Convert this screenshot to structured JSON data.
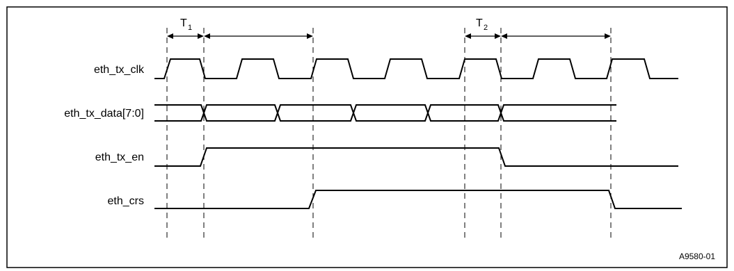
{
  "signals": [
    {
      "id": "clk",
      "label": "eth_tx_clk"
    },
    {
      "id": "data",
      "label": "eth_tx_data[7:0]"
    },
    {
      "id": "en",
      "label": "eth_tx_en"
    },
    {
      "id": "crs",
      "label": "eth_crs"
    }
  ],
  "timing_labels": {
    "t1_main": "T",
    "t1_sub": "1",
    "t2_main": "T",
    "t2_sub": "2"
  },
  "figure_id": "A9580-01"
}
